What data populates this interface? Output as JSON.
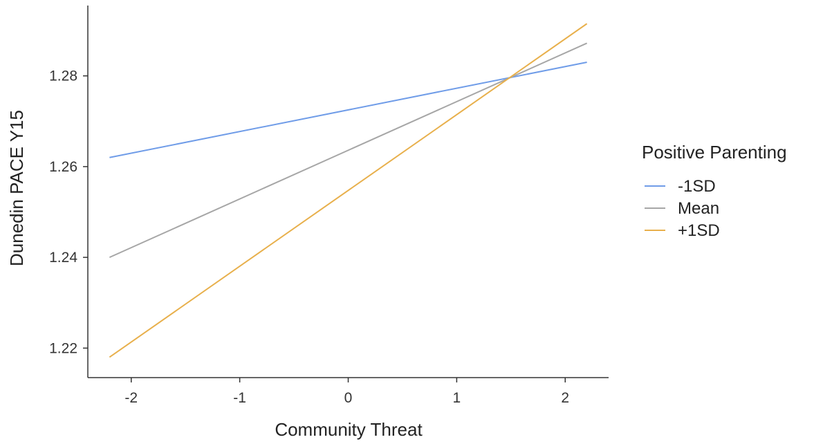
{
  "chart_data": {
    "type": "line",
    "xlabel": "Community Threat",
    "ylabel": "Dunedin PACE Y15",
    "xlim": [
      -2.4,
      2.4
    ],
    "ylim": [
      1.2135,
      1.2955
    ],
    "x_ticks": [
      -2,
      -1,
      0,
      1,
      2
    ],
    "x_tick_labels": [
      "-2",
      "-1",
      "0",
      "1",
      "2"
    ],
    "y_ticks": [
      1.22,
      1.24,
      1.26,
      1.28
    ],
    "y_tick_labels": [
      "1.22",
      "1.24",
      "1.26",
      "1.28"
    ],
    "grid": false,
    "legend": {
      "title": "Positive Parenting",
      "position": "right"
    },
    "series": [
      {
        "name": "-1SD",
        "color": "#6f9ce8",
        "x": [
          -2.2,
          2.2
        ],
        "y": [
          1.262,
          1.283
        ]
      },
      {
        "name": "Mean",
        "color": "#a6a6a6",
        "x": [
          -2.2,
          2.2
        ],
        "y": [
          1.24,
          1.2872
        ]
      },
      {
        "name": "+1SD",
        "color": "#e8b04c",
        "x": [
          -2.2,
          2.2
        ],
        "y": [
          1.218,
          1.2915
        ]
      }
    ]
  }
}
